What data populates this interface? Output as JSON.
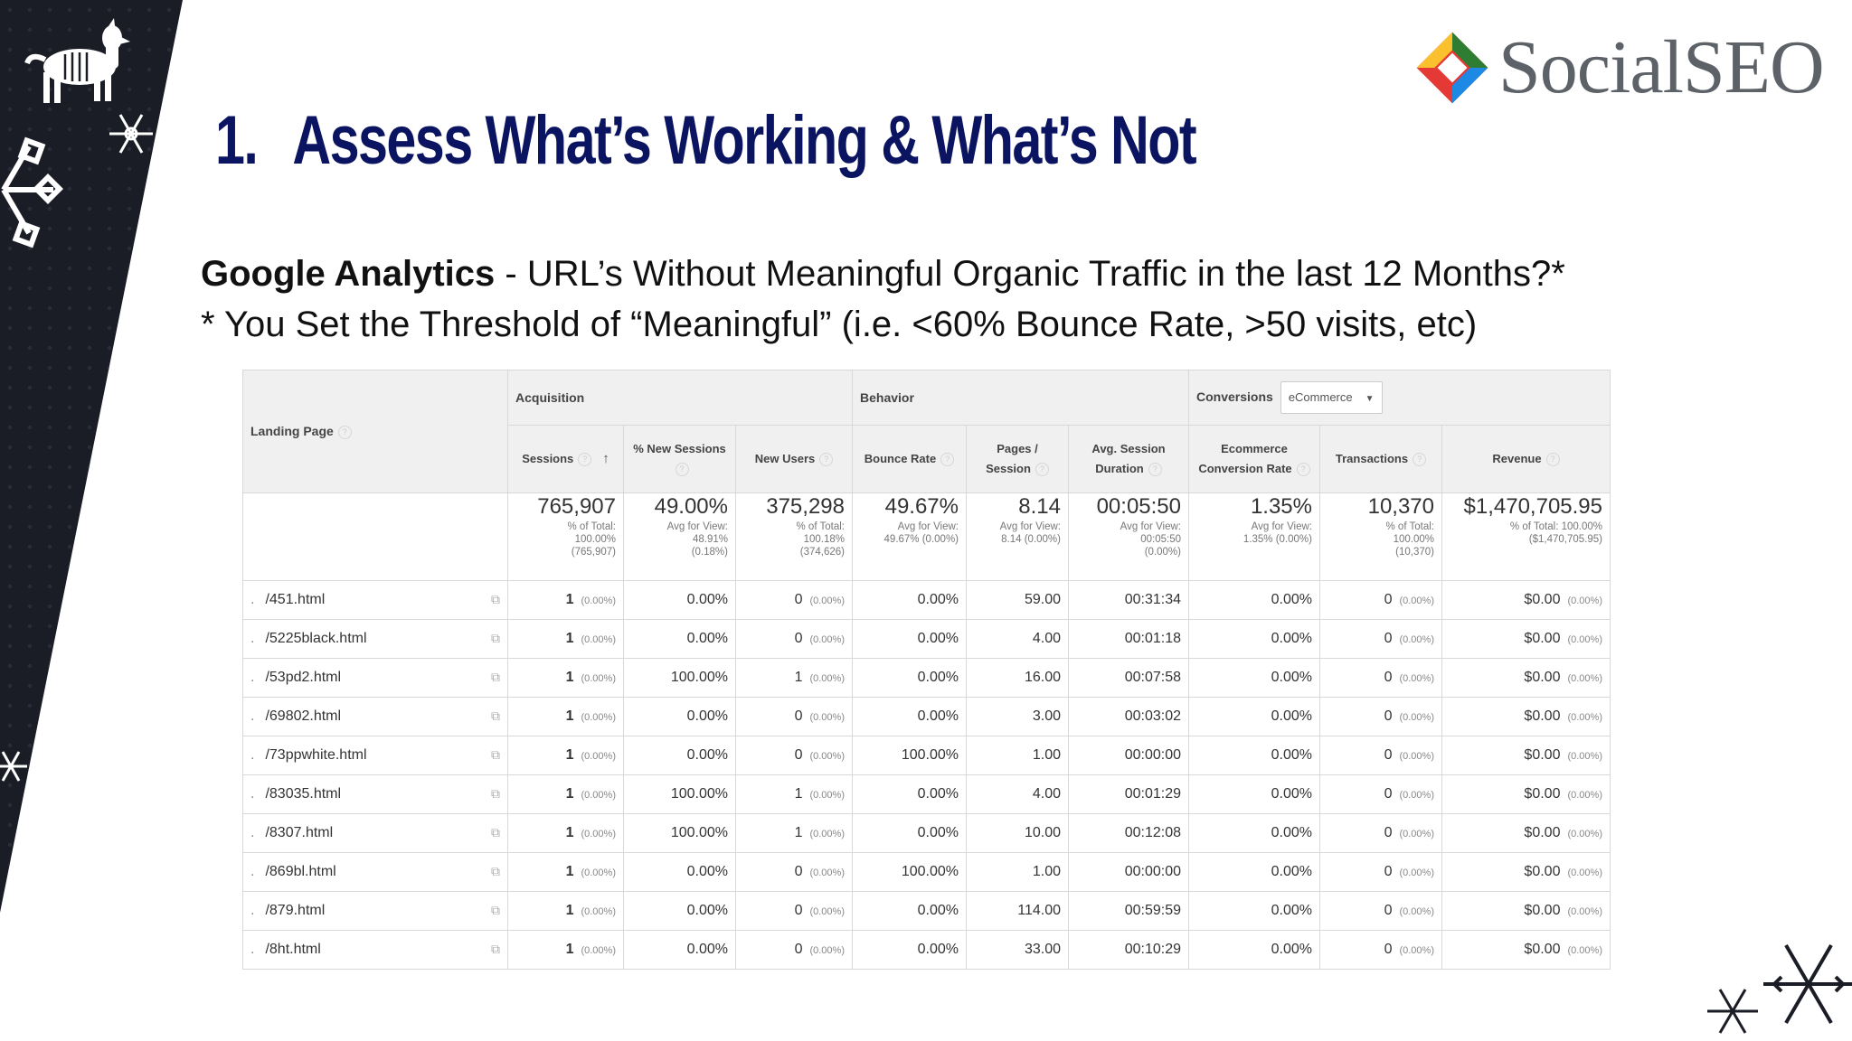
{
  "slide": {
    "title_number": "1.",
    "title_text": "Assess What’s Working & What’s Not",
    "subtitle_bold": "Google Analytics",
    "subtitle_rest": " - URL’s Without Meaningful Organic Traffic in the last 12 Months?*",
    "subtitle_line2": "* You Set the Threshold of “Meaningful” (i.e. <60% Bounce Rate, >50 visits, etc)"
  },
  "logo": {
    "text": "SocialSEO"
  },
  "colors": {
    "title": "#0b1461",
    "side_band": "#1b1d26",
    "logo_text": "#5d6168"
  },
  "table": {
    "landing_page_label": "Landing Page",
    "groups": {
      "acquisition": "Acquisition",
      "behavior": "Behavior",
      "conversions": "Conversions"
    },
    "conversions_select": "eCommerce",
    "columns": {
      "sessions": "Sessions",
      "new_sessions": "% New Sessions",
      "new_users": "New Users",
      "bounce_rate": "Bounce Rate",
      "pages_session": "Pages / Session",
      "avg_duration": "Avg. Session Duration",
      "ecomm_rate": "Ecommerce Conversion Rate",
      "transactions": "Transactions",
      "revenue": "Revenue"
    },
    "totals": {
      "sessions": {
        "value": "765,907",
        "l1": "% of Total:",
        "l2": "100.00%",
        "l3": "(765,907)"
      },
      "new_sessions": {
        "value": "49.00%",
        "l1": "Avg for View:",
        "l2": "48.91%",
        "l3": "(0.18%)"
      },
      "new_users": {
        "value": "375,298",
        "l1": "% of Total:",
        "l2": "100.18%",
        "l3": "(374,626)"
      },
      "bounce_rate": {
        "value": "49.67%",
        "l1": "Avg for View:",
        "l2": "49.67% (0.00%)",
        "l3": ""
      },
      "pages_session": {
        "value": "8.14",
        "l1": "Avg for View:",
        "l2": "8.14 (0.00%)",
        "l3": ""
      },
      "avg_duration": {
        "value": "00:05:50",
        "l1": "Avg for View:",
        "l2": "00:05:50",
        "l3": "(0.00%)"
      },
      "ecomm_rate": {
        "value": "1.35%",
        "l1": "Avg for View:",
        "l2": "1.35% (0.00%)",
        "l3": ""
      },
      "transactions": {
        "value": "10,370",
        "l1": "% of Total:",
        "l2": "100.00%",
        "l3": "(10,370)"
      },
      "revenue": {
        "value": "$1,470,705.95",
        "l1": "% of Total: 100.00%",
        "l2": "($1,470,705.95)",
        "l3": ""
      }
    },
    "rows": [
      {
        "page": "/451.html",
        "sessions": "1",
        "sessions_pct": "(0.00%)",
        "new_sessions": "0.00%",
        "new_users": "0",
        "new_users_pct": "(0.00%)",
        "bounce_rate": "0.00%",
        "pages_session": "59.00",
        "avg_duration": "00:31:34",
        "ecomm_rate": "0.00%",
        "transactions": "0",
        "transactions_pct": "(0.00%)",
        "revenue": "$0.00",
        "revenue_pct": "(0.00%)"
      },
      {
        "page": "/5225black.html",
        "sessions": "1",
        "sessions_pct": "(0.00%)",
        "new_sessions": "0.00%",
        "new_users": "0",
        "new_users_pct": "(0.00%)",
        "bounce_rate": "0.00%",
        "pages_session": "4.00",
        "avg_duration": "00:01:18",
        "ecomm_rate": "0.00%",
        "transactions": "0",
        "transactions_pct": "(0.00%)",
        "revenue": "$0.00",
        "revenue_pct": "(0.00%)"
      },
      {
        "page": "/53pd2.html",
        "sessions": "1",
        "sessions_pct": "(0.00%)",
        "new_sessions": "100.00%",
        "new_users": "1",
        "new_users_pct": "(0.00%)",
        "bounce_rate": "0.00%",
        "pages_session": "16.00",
        "avg_duration": "00:07:58",
        "ecomm_rate": "0.00%",
        "transactions": "0",
        "transactions_pct": "(0.00%)",
        "revenue": "$0.00",
        "revenue_pct": "(0.00%)"
      },
      {
        "page": "/69802.html",
        "sessions": "1",
        "sessions_pct": "(0.00%)",
        "new_sessions": "0.00%",
        "new_users": "0",
        "new_users_pct": "(0.00%)",
        "bounce_rate": "0.00%",
        "pages_session": "3.00",
        "avg_duration": "00:03:02",
        "ecomm_rate": "0.00%",
        "transactions": "0",
        "transactions_pct": "(0.00%)",
        "revenue": "$0.00",
        "revenue_pct": "(0.00%)"
      },
      {
        "page": "/73ppwhite.html",
        "sessions": "1",
        "sessions_pct": "(0.00%)",
        "new_sessions": "0.00%",
        "new_users": "0",
        "new_users_pct": "(0.00%)",
        "bounce_rate": "100.00%",
        "pages_session": "1.00",
        "avg_duration": "00:00:00",
        "ecomm_rate": "0.00%",
        "transactions": "0",
        "transactions_pct": "(0.00%)",
        "revenue": "$0.00",
        "revenue_pct": "(0.00%)"
      },
      {
        "page": "/83035.html",
        "sessions": "1",
        "sessions_pct": "(0.00%)",
        "new_sessions": "100.00%",
        "new_users": "1",
        "new_users_pct": "(0.00%)",
        "bounce_rate": "0.00%",
        "pages_session": "4.00",
        "avg_duration": "00:01:29",
        "ecomm_rate": "0.00%",
        "transactions": "0",
        "transactions_pct": "(0.00%)",
        "revenue": "$0.00",
        "revenue_pct": "(0.00%)"
      },
      {
        "page": "/8307.html",
        "sessions": "1",
        "sessions_pct": "(0.00%)",
        "new_sessions": "100.00%",
        "new_users": "1",
        "new_users_pct": "(0.00%)",
        "bounce_rate": "0.00%",
        "pages_session": "10.00",
        "avg_duration": "00:12:08",
        "ecomm_rate": "0.00%",
        "transactions": "0",
        "transactions_pct": "(0.00%)",
        "revenue": "$0.00",
        "revenue_pct": "(0.00%)"
      },
      {
        "page": "/869bl.html",
        "sessions": "1",
        "sessions_pct": "(0.00%)",
        "new_sessions": "0.00%",
        "new_users": "0",
        "new_users_pct": "(0.00%)",
        "bounce_rate": "100.00%",
        "pages_session": "1.00",
        "avg_duration": "00:00:00",
        "ecomm_rate": "0.00%",
        "transactions": "0",
        "transactions_pct": "(0.00%)",
        "revenue": "$0.00",
        "revenue_pct": "(0.00%)"
      },
      {
        "page": "/879.html",
        "sessions": "1",
        "sessions_pct": "(0.00%)",
        "new_sessions": "0.00%",
        "new_users": "0",
        "new_users_pct": "(0.00%)",
        "bounce_rate": "0.00%",
        "pages_session": "114.00",
        "avg_duration": "00:59:59",
        "ecomm_rate": "0.00%",
        "transactions": "0",
        "transactions_pct": "(0.00%)",
        "revenue": "$0.00",
        "revenue_pct": "(0.00%)"
      },
      {
        "page": "/8ht.html",
        "sessions": "1",
        "sessions_pct": "(0.00%)",
        "new_sessions": "0.00%",
        "new_users": "0",
        "new_users_pct": "(0.00%)",
        "bounce_rate": "0.00%",
        "pages_session": "33.00",
        "avg_duration": "00:10:29",
        "ecomm_rate": "0.00%",
        "transactions": "0",
        "transactions_pct": "(0.00%)",
        "revenue": "$0.00",
        "revenue_pct": "(0.00%)"
      }
    ]
  }
}
